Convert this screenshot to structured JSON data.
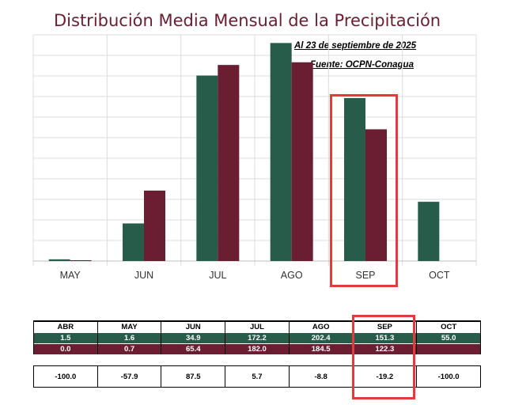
{
  "title": "Distribución Media Mensual de la Precipitación",
  "note_date": "Al 23 de septiembre de 2025",
  "note_source": "Fuente: OCPN-Conagua",
  "colors": {
    "series_a": "#275c4a",
    "series_b": "#6b1d32",
    "highlight": "#e43a3a"
  },
  "chart_data": {
    "type": "bar",
    "categories": [
      "MAY",
      "JUN",
      "JUL",
      "AGO",
      "SEP",
      "OCT"
    ],
    "series": [
      {
        "values": [
          1.6,
          34.9,
          172.2,
          202.4,
          151.3,
          55.0
        ]
      },
      {
        "values": [
          0.7,
          65.4,
          182.0,
          184.5,
          122.3,
          null
        ]
      }
    ],
    "ylim": [
      0,
      210
    ],
    "grid": true,
    "highlight_category": "SEP"
  },
  "table": {
    "headers": [
      "ABR",
      "MAY",
      "JUN",
      "JUL",
      "AGO",
      "SEP",
      "OCT"
    ],
    "row_a": [
      "1.5",
      "1.6",
      "34.9",
      "172.2",
      "202.4",
      "151.3",
      "55.0"
    ],
    "row_b": [
      "0.0",
      "0.7",
      "65.4",
      "182.0",
      "184.5",
      "122.3",
      ""
    ],
    "row_c": [
      "-100.0",
      "-57.9",
      "87.5",
      "5.7",
      "-8.8",
      "-19.2",
      "-100.0"
    ]
  }
}
